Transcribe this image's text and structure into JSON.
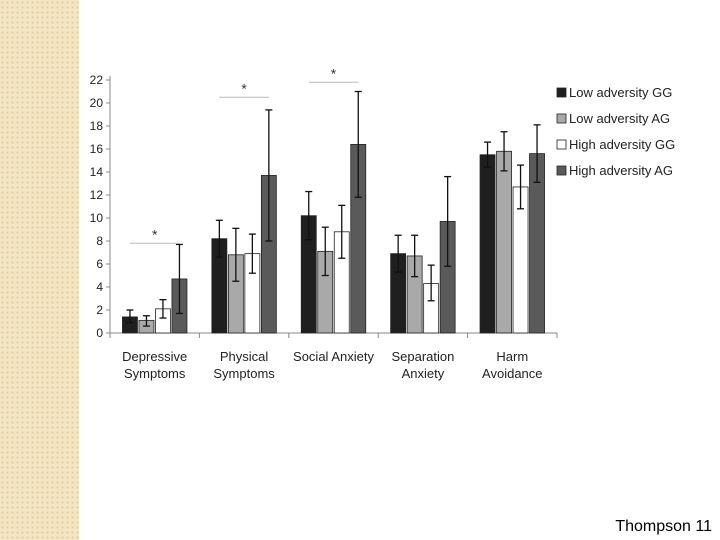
{
  "slide": {
    "footer_text": "Thompson 11"
  },
  "chart_data": {
    "type": "bar",
    "title": "",
    "xlabel": "",
    "ylabel": "",
    "ylim": [
      0,
      22
    ],
    "yticks": [
      0,
      2,
      4,
      6,
      8,
      10,
      12,
      14,
      16,
      18,
      20,
      22
    ],
    "categories": [
      [
        "Depressive",
        "Symptoms"
      ],
      [
        "Physical",
        "Symptoms"
      ],
      [
        "Social Anxiety"
      ],
      [
        "Separation",
        "Anxiety"
      ],
      [
        "Harm",
        "Avoidance"
      ]
    ],
    "series": [
      {
        "name": "Low adversity GG",
        "color": "#1f1f1f",
        "values": [
          1.4,
          8.2,
          10.2,
          6.9,
          15.5
        ],
        "error_low": [
          0.9,
          6.6,
          8.1,
          5.3,
          14.4
        ],
        "error_high": [
          2.0,
          9.8,
          12.3,
          8.5,
          16.6
        ]
      },
      {
        "name": "Low adversity AG",
        "color": "#a9a9a9",
        "values": [
          1.1,
          6.8,
          7.1,
          6.7,
          15.8
        ],
        "error_low": [
          0.6,
          4.5,
          5.0,
          4.9,
          14.1
        ],
        "error_high": [
          1.5,
          9.1,
          9.2,
          8.5,
          17.5
        ]
      },
      {
        "name": "High adversity GG",
        "color": "#ffffff",
        "values": [
          2.1,
          6.9,
          8.8,
          4.3,
          12.7
        ],
        "error_low": [
          1.3,
          5.2,
          6.5,
          2.8,
          10.8
        ],
        "error_high": [
          2.9,
          8.6,
          11.1,
          5.9,
          14.6
        ]
      },
      {
        "name": "High adversity AG",
        "color": "#5a5a5a",
        "values": [
          4.7,
          13.7,
          16.4,
          9.7,
          15.6
        ],
        "error_low": [
          1.7,
          8.0,
          11.8,
          5.8,
          13.1
        ],
        "error_high": [
          7.7,
          19.4,
          21.0,
          13.6,
          18.1
        ]
      }
    ],
    "significance": [
      {
        "label": "*",
        "from_category": 0,
        "to_category": 0,
        "y": 7.8
      },
      {
        "label": "*",
        "from_category": 1,
        "to_category": 1,
        "y": 20.5
      },
      {
        "label": "*",
        "from_category": 2,
        "to_category": 2,
        "y": 21.8
      }
    ],
    "legend_position": "right",
    "grid": false
  }
}
